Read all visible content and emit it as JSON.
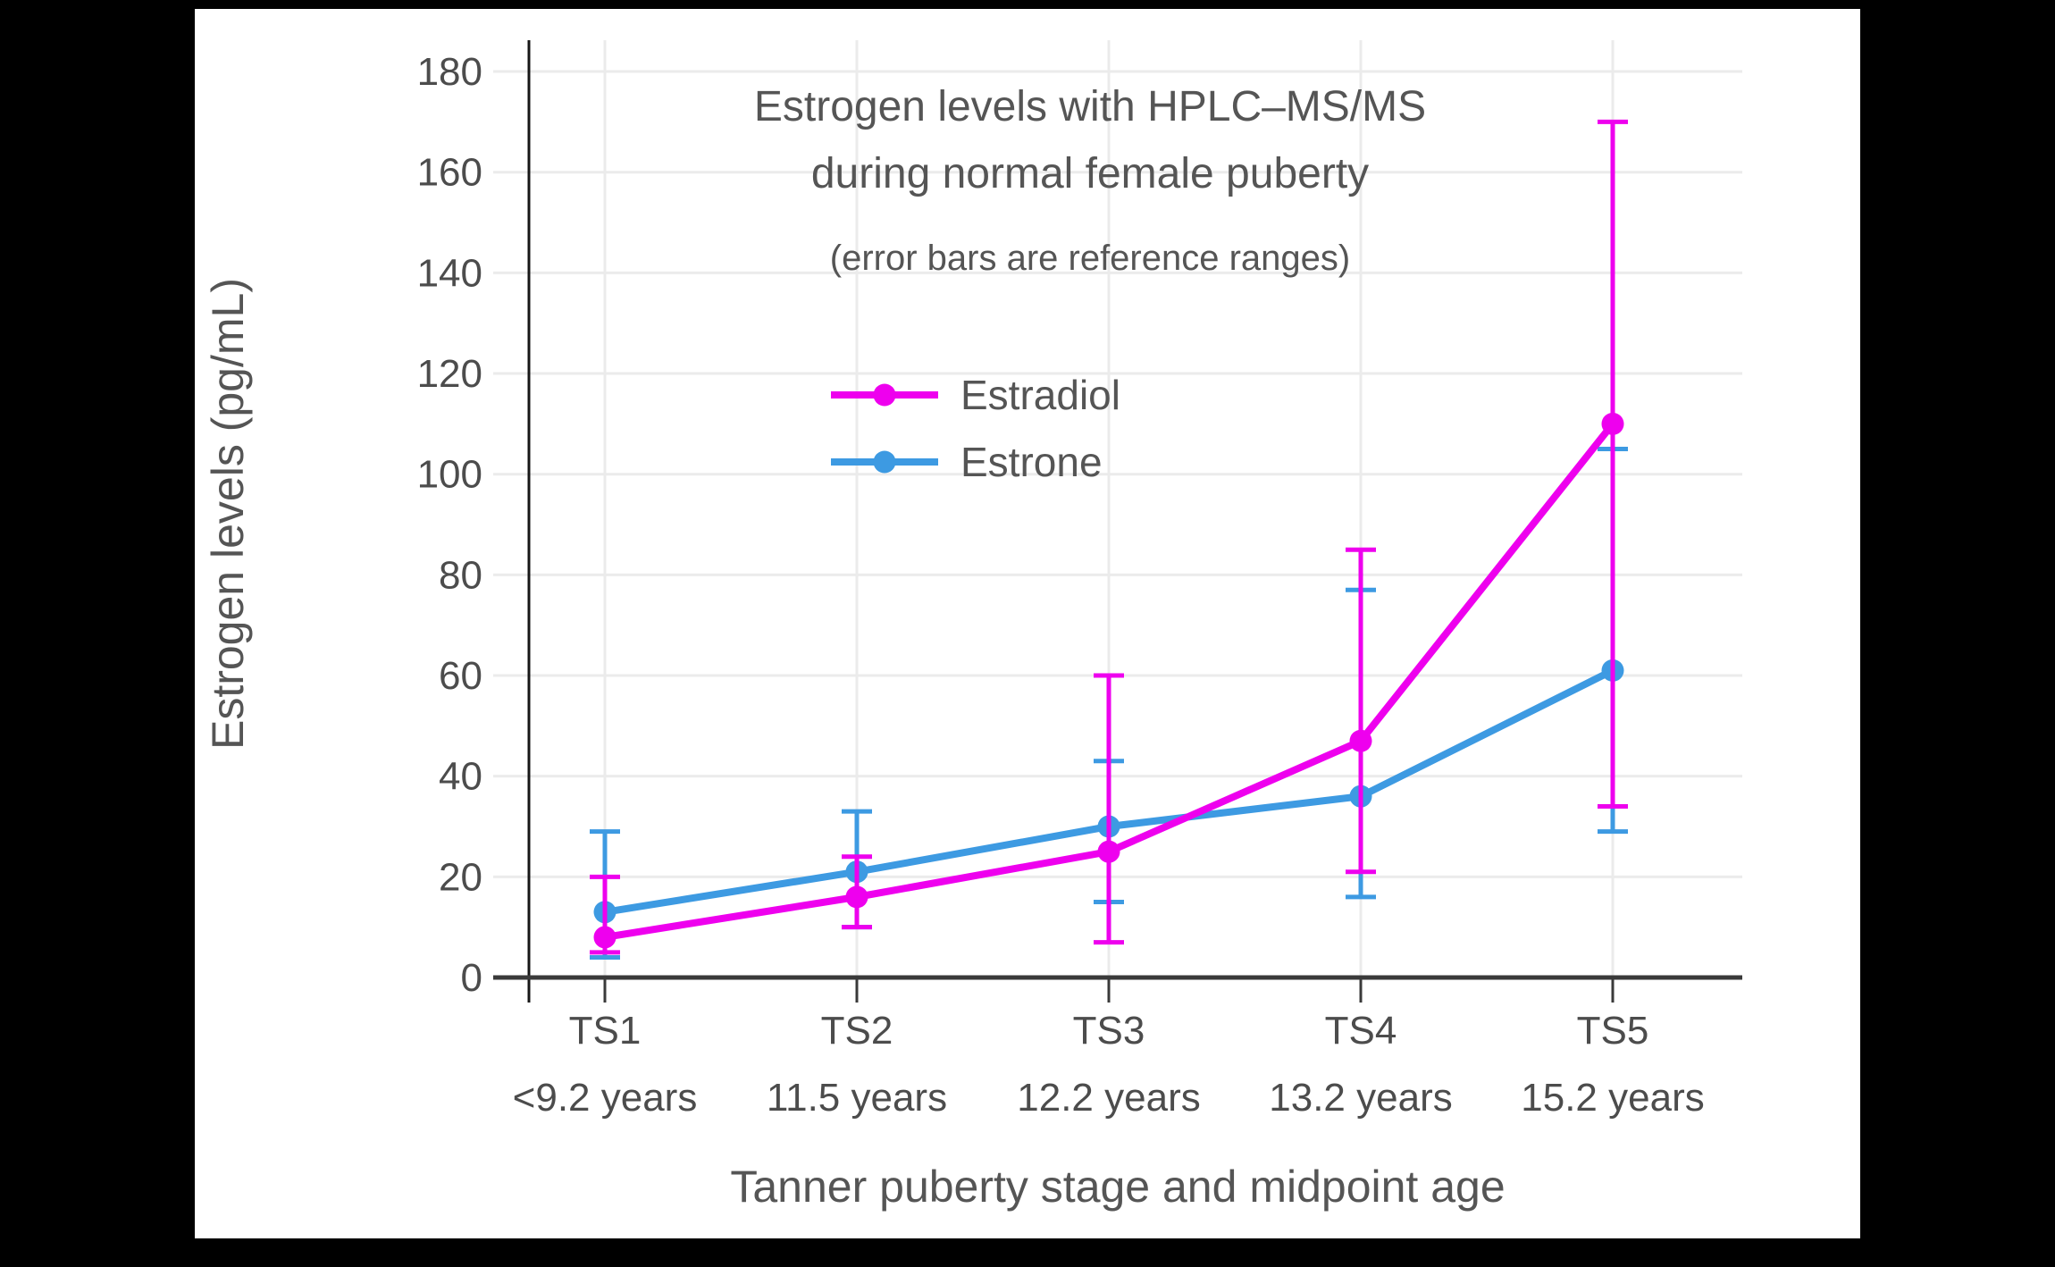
{
  "page": {
    "background_color": "#000000",
    "canvas_color": "#ffffff"
  },
  "chart_data": {
    "type": "line",
    "title_lines": [
      "Estrogen levels with HPLC–MS/MS",
      "during normal female puberty"
    ],
    "subtitle": "(error bars are reference ranges)",
    "xlabel": "Tanner puberty stage and midpoint age",
    "ylabel": "Estrogen levels (pg/mL)",
    "units": "pg/mL",
    "ylim": [
      0,
      180
    ],
    "ytick_step": 20,
    "ytick_labels": [
      "0",
      "20",
      "40",
      "60",
      "80",
      "100",
      "120",
      "140",
      "160",
      "180"
    ],
    "grid": true,
    "legend": {
      "position": "inside-upper-center",
      "items": [
        "Estradiol",
        "Estrone"
      ]
    },
    "categories": [
      "TS1",
      "TS2",
      "TS3",
      "TS4",
      "TS5"
    ],
    "category_sublabels": [
      "<9.2 years",
      "11.5 years",
      "12.2 years",
      "13.2 years",
      "15.2 years"
    ],
    "series": [
      {
        "name": "Estradiol",
        "color": "#EE00EE",
        "values": [
          8,
          16,
          25,
          47,
          110
        ],
        "error_low": [
          5,
          10,
          7,
          21,
          34
        ],
        "error_high": [
          20,
          24,
          60,
          85,
          170
        ]
      },
      {
        "name": "Estrone",
        "color": "#3D9AE2",
        "values": [
          13,
          21,
          30,
          36,
          61
        ],
        "error_low": [
          4,
          10,
          15,
          16,
          29
        ],
        "error_high": [
          29,
          33,
          43,
          77,
          105
        ]
      }
    ],
    "axis_color": "#3A3A3A",
    "y_axis_line_color": "#161616",
    "grid_color": "#EBEBEB",
    "text_color": "#555555",
    "tick_text_color": "#4C4C4C"
  }
}
